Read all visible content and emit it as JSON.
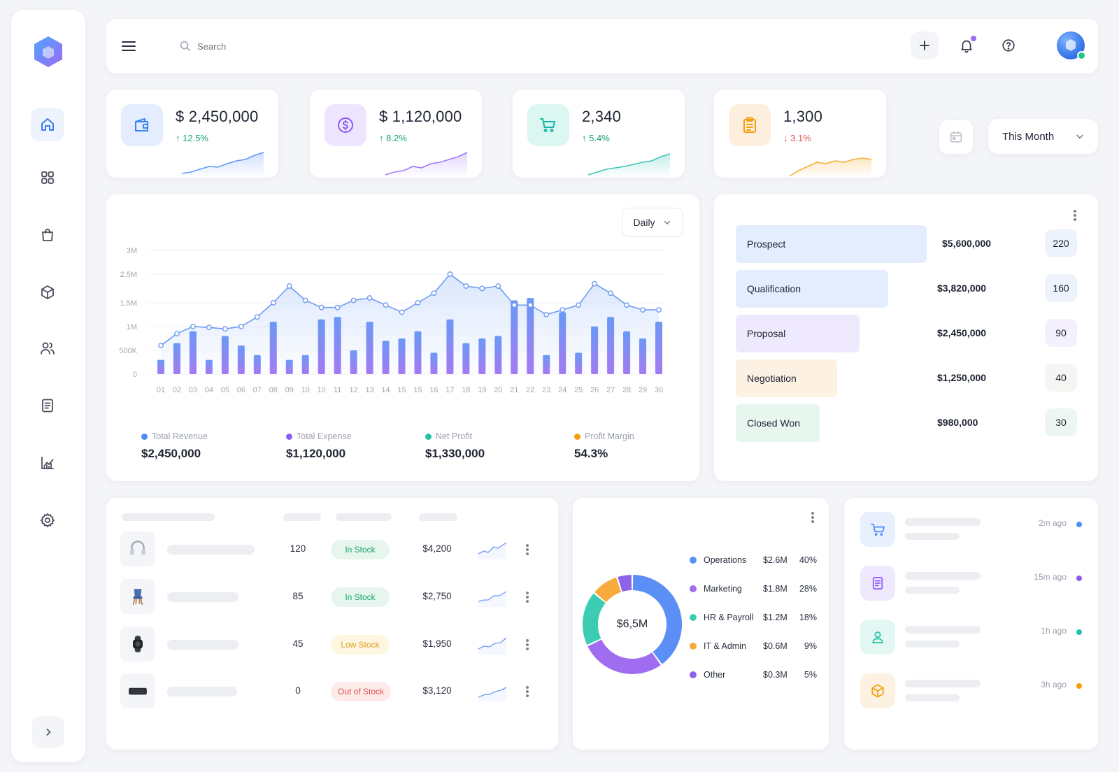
{
  "header": {
    "search_placeholder": "Search",
    "icons": [
      "menu-icon",
      "search-icon",
      "plus-icon",
      "bell-icon",
      "help-icon"
    ],
    "has_notification": true
  },
  "sidebar": {
    "items": [
      {
        "icon": "home-icon",
        "active": true
      },
      {
        "icon": "grid-icon",
        "active": false
      },
      {
        "icon": "bag-icon",
        "active": false
      },
      {
        "icon": "cube-icon",
        "active": false
      },
      {
        "icon": "users-icon",
        "active": false
      },
      {
        "icon": "document-icon",
        "active": false
      },
      {
        "icon": "analytics-icon",
        "active": false
      },
      {
        "icon": "settings-icon",
        "active": false
      }
    ]
  },
  "kpis": [
    {
      "value": "$ 2,450,000",
      "change": "12.5%",
      "direction": "up",
      "icon": "wallet-icon",
      "color": "#3b82f6",
      "bg": "#e3edfd"
    },
    {
      "value": "$ 1,120,000",
      "change": "8.2%",
      "direction": "up",
      "icon": "dollar-icon",
      "color": "#8b5cf6",
      "bg": "#ede5fd"
    },
    {
      "value": "2,340",
      "change": "5.4%",
      "direction": "up",
      "icon": "cart-icon",
      "color": "#14b8a6",
      "bg": "#dcf6f2"
    },
    {
      "value": "1,300",
      "change": "3.1%",
      "direction": "down",
      "icon": "clipboard-icon",
      "color": "#f59e0b",
      "bg": "#fdeedd"
    }
  ],
  "period": {
    "selected": "This Month"
  },
  "chart": {
    "range_label": "Daily",
    "stats": [
      {
        "label": "Total Revenue",
        "value": "$2,450,000",
        "color": "#4f8cf6"
      },
      {
        "label": "Total Expense",
        "value": "$1,120,000",
        "color": "#8b5cf6"
      },
      {
        "label": "Net Profit",
        "value": "$1,330,000",
        "color": "#22c3a6"
      },
      {
        "label": "Profit Margin",
        "value": "54.3%",
        "color": "#f59e0b"
      }
    ]
  },
  "chart_data": {
    "type": "bar",
    "categories": [
      "01",
      "02",
      "03",
      "04",
      "05",
      "06",
      "07",
      "08",
      "09",
      "10",
      "10",
      "11",
      "12",
      "13",
      "14",
      "15",
      "15",
      "16",
      "17",
      "18",
      "19",
      "20",
      "21",
      "22",
      "23",
      "24",
      "25",
      "26",
      "27",
      "28",
      "29",
      "30"
    ],
    "y_ticks": [
      "0",
      "500K",
      "1M",
      "1.5M",
      "2.5M",
      "3M"
    ],
    "ylim": [
      0,
      2.6
    ],
    "series": [
      {
        "type": "bar",
        "values": [
          0.3,
          0.65,
          0.9,
          0.3,
          0.8,
          0.6,
          0.4,
          1.1,
          0.3,
          0.4,
          1.15,
          1.2,
          0.5,
          1.1,
          0.7,
          0.75,
          0.9,
          0.45,
          1.15,
          0.65,
          0.75,
          0.8,
          1.55,
          1.6,
          0.4,
          1.3,
          0.45,
          1.0,
          1.2,
          0.9,
          0.75,
          1.1
        ]
      },
      {
        "type": "line",
        "values": [
          0.6,
          0.85,
          1.0,
          0.98,
          0.95,
          1.0,
          1.2,
          1.5,
          1.85,
          1.55,
          1.4,
          1.4,
          1.55,
          1.6,
          1.45,
          1.3,
          1.5,
          1.7,
          2.1,
          1.85,
          1.8,
          1.85,
          1.45,
          1.45,
          1.25,
          1.35,
          1.45,
          1.9,
          1.7,
          1.45,
          1.35,
          1.35
        ]
      }
    ]
  },
  "pipeline": {
    "stages": [
      {
        "name": "Prospect",
        "amount": "$5,600,000",
        "count": "220",
        "bg": "#e4edfd",
        "cbg": "#edf2fb",
        "width": 1.0
      },
      {
        "name": "Qualification",
        "amount": "$3,820,000",
        "count": "160",
        "bg": "#e4edfd",
        "cbg": "#edf2fb",
        "width": 0.8
      },
      {
        "name": "Proposal",
        "amount": "$2,450,000",
        "count": "90",
        "bg": "#efe9fd",
        "cbg": "#f4f1fc",
        "width": 0.65
      },
      {
        "name": "Negotiation",
        "amount": "$1,250,000",
        "count": "40",
        "bg": "#fdf1e4",
        "cbg": "#f6f5f3",
        "width": 0.53
      },
      {
        "name": "Closed Won",
        "amount": "$980,000",
        "count": "30",
        "bg": "#e7f7ef",
        "cbg": "#eef6f2",
        "width": 0.44
      }
    ]
  },
  "products": {
    "rows": [
      {
        "icon": "headphones-icon",
        "qty": "120",
        "status": "In Stock",
        "status_color": "#18a46b",
        "status_bg": "#e6f6ee",
        "price": "$4,200"
      },
      {
        "icon": "chair-icon",
        "qty": "85",
        "status": "In Stock",
        "status_color": "#18a46b",
        "status_bg": "#e6f6ee",
        "price": "$2,750"
      },
      {
        "icon": "watch-icon",
        "qty": "45",
        "status": "Low Stock",
        "status_color": "#e0a020",
        "status_bg": "#fdf6e1",
        "price": "$1,950"
      },
      {
        "icon": "keyboard-icon",
        "qty": "0",
        "status": "Out of Stock",
        "status_color": "#e0504c",
        "status_bg": "#fdebea",
        "price": "$3,120"
      }
    ]
  },
  "expenses": {
    "total": "$6,5M",
    "items": [
      {
        "name": "Operations",
        "amount": "$2.6M",
        "pct": "40%",
        "share": 40,
        "color": "#5b8ff5"
      },
      {
        "name": "Marketing",
        "amount": "$1.8M",
        "pct": "28%",
        "share": 28,
        "color": "#a06cf0"
      },
      {
        "name": "HR & Payroll",
        "amount": "$1.2M",
        "pct": "18%",
        "share": 18,
        "color": "#3cccb4"
      },
      {
        "name": "IT & Admin",
        "amount": "$0.6M",
        "pct": "9%",
        "share": 9,
        "color": "#f8aa3c"
      },
      {
        "name": "Other",
        "amount": "$0.3M",
        "pct": "5%",
        "share": 5,
        "color": "#8f63e8"
      }
    ]
  },
  "activity": {
    "items": [
      {
        "icon": "cart-icon",
        "time": "2m ago",
        "color": "#4f8cf6",
        "bg": "#e8f0fd"
      },
      {
        "icon": "document-icon",
        "time": "15m ago",
        "color": "#8b5cf6",
        "bg": "#efe9fd"
      },
      {
        "icon": "user-icon",
        "time": "1h ago",
        "color": "#22c3a6",
        "bg": "#e3f7f3"
      },
      {
        "icon": "box-icon",
        "time": "3h ago",
        "color": "#f59e0b",
        "bg": "#fdf1e2"
      }
    ]
  }
}
